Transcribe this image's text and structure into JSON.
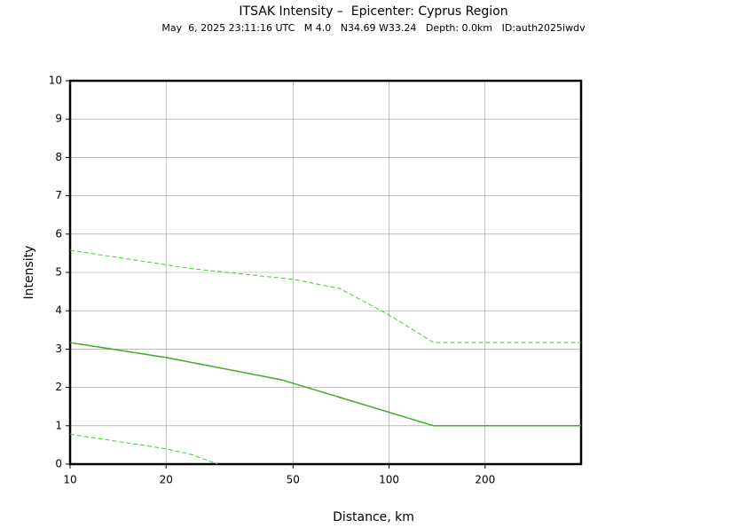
{
  "chart_data": {
    "type": "line",
    "title": "ITSAK Intensity –  Epicenter: Cyprus Region",
    "subtitle": "May  6, 2025 23:11:16 UTC   M 4.0   N34.69 W33.24   Depth: 0.0km   ID:auth2025iwdv",
    "x_label": "Distance, km",
    "y_label": "Intensity",
    "x_scale": "log",
    "grid": true,
    "xlim": [
      10,
      400
    ],
    "ylim": [
      0,
      10
    ],
    "xticks": [
      10,
      20,
      50,
      100,
      200
    ],
    "yticks": [
      0,
      1,
      2,
      3,
      4,
      5,
      6,
      7,
      8,
      9,
      10
    ],
    "series": [
      {
        "color": "#44aa22",
        "dash": false,
        "x": [
          10,
          20,
          46,
          138,
          400
        ],
        "values": [
          3.17,
          2.78,
          2.2,
          1.0,
          1.0
        ]
      },
      {
        "color": "#44cc33",
        "dash": true,
        "x": [
          10,
          20,
          24,
          50,
          70,
          100,
          138,
          400
        ],
        "values": [
          5.58,
          5.2,
          5.1,
          4.82,
          4.58,
          3.89,
          3.17,
          3.17
        ]
      },
      {
        "color": "#44cc33",
        "dash": true,
        "x": [
          10,
          20,
          24,
          29
        ],
        "values": [
          0.78,
          0.4,
          0.25,
          0
        ]
      }
    ]
  }
}
